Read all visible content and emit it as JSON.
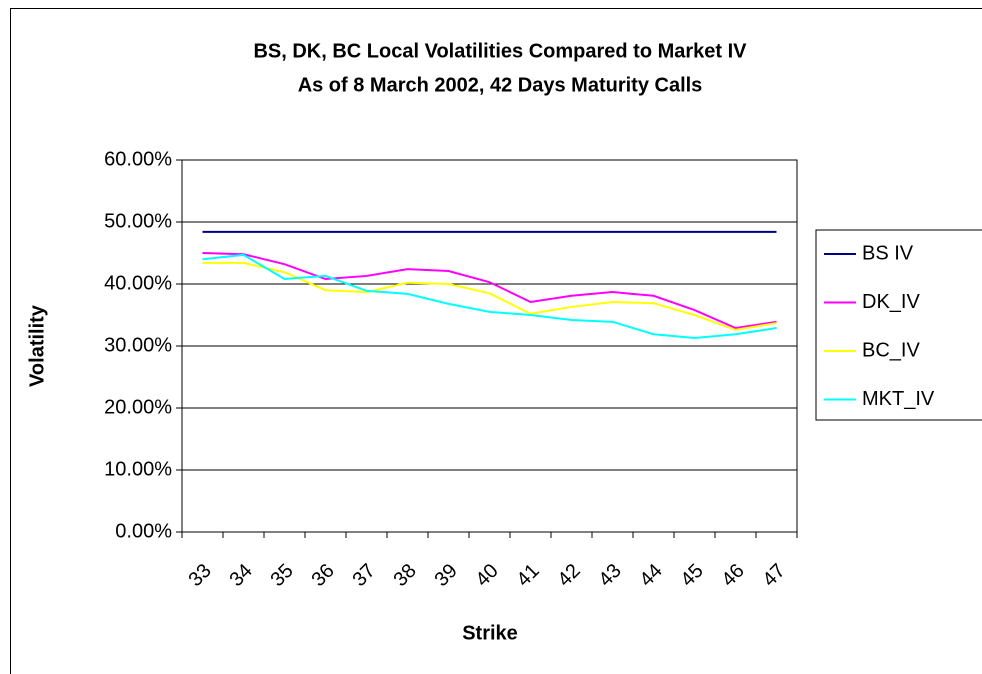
{
  "chart_data": {
    "type": "line",
    "title": [
      "BS, DK, BC Local Volatilities Compared to Market IV",
      "As of 8 March 2002, 42 Days Maturity Calls"
    ],
    "x_label": "Strike",
    "y_label": "Volatility",
    "categories": [
      "33",
      "34",
      "35",
      "36",
      "37",
      "38",
      "39",
      "40",
      "41",
      "42",
      "43",
      "44",
      "45",
      "46",
      "47"
    ],
    "series": [
      {
        "name": "BS IV",
        "color": "#000080",
        "values": [
          48.4,
          48.4,
          48.4,
          48.4,
          48.4,
          48.4,
          48.4,
          48.4,
          48.4,
          48.4,
          48.4,
          48.4,
          48.4,
          48.4,
          48.4
        ]
      },
      {
        "name": "DK_IV",
        "color": "#ff00ff",
        "values": [
          45.0,
          44.8,
          43.2,
          40.8,
          41.3,
          42.4,
          42.1,
          40.3,
          37.1,
          38.1,
          38.7,
          38.1,
          35.8,
          32.9,
          33.9
        ]
      },
      {
        "name": "BC_IV",
        "color": "#ffff00",
        "values": [
          43.4,
          43.4,
          41.9,
          39.0,
          38.7,
          40.2,
          40.0,
          38.5,
          35.2,
          36.3,
          37.1,
          36.9,
          35.0,
          32.6,
          33.7
        ]
      },
      {
        "name": "MKT_IV",
        "color": "#00ffff",
        "values": [
          44.0,
          44.7,
          40.8,
          41.3,
          38.9,
          38.4,
          36.8,
          35.5,
          35.0,
          34.2,
          33.9,
          31.9,
          31.3,
          31.9,
          32.9
        ]
      }
    ],
    "ylim": [
      0,
      60
    ],
    "yticks": [
      {
        "value": 0,
        "label": "0.00%"
      },
      {
        "value": 10,
        "label": "10.00%"
      },
      {
        "value": 20,
        "label": "20.00%"
      },
      {
        "value": 30,
        "label": "30.00%"
      },
      {
        "value": 40,
        "label": "40.00%"
      },
      {
        "value": 50,
        "label": "50.00%"
      },
      {
        "value": 60,
        "label": "60.00%"
      }
    ],
    "grid": true,
    "legend": "right"
  }
}
